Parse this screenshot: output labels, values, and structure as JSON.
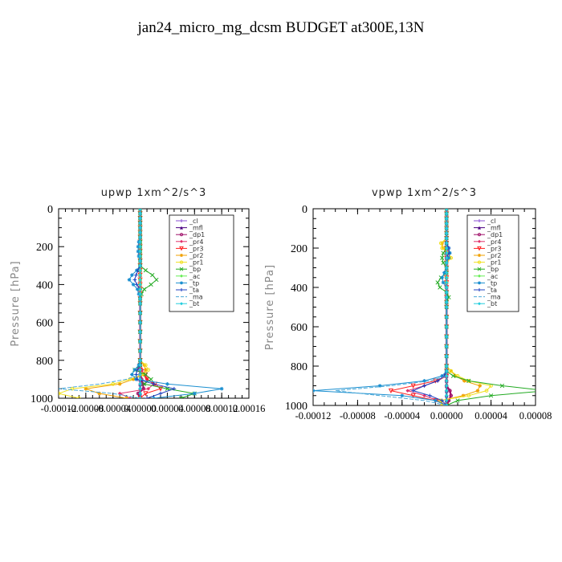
{
  "title": "jan24_micro_mg_dcsm  BUDGET at300E,13N",
  "colors": {
    "_cl": "#8a4fd6",
    "_mfl": "#4b0082",
    "_dp1": "#a0106a",
    "_pr4": "#e0306a",
    "_pr3": "#ff2020",
    "_pr2": "#f0a000",
    "_pr1": "#f0e020",
    "_bp": "#22aa22",
    "_ac": "#66ee55",
    "_tp": "#1a8fd0",
    "_ta": "#2040c0",
    "_ma": "#4aa8d8",
    "_bt": "#22ccdd"
  },
  "chart_data": [
    {
      "type": "line",
      "title": "upwp   1xm^2/s^3",
      "ylabel": "Pressure [hPa]",
      "xlabel": "",
      "xlim": [
        -0.00012,
        0.00016
      ],
      "ylim": [
        1000,
        0
      ],
      "y_ticks": [
        0,
        200,
        400,
        600,
        800,
        1000
      ],
      "y_tick_labels": [
        "0",
        "200",
        "400",
        "600",
        "800",
        "1000"
      ],
      "x_ticks": [
        -0.00012,
        -8e-05,
        -4e-05,
        0,
        4e-05,
        8e-05,
        0.00012,
        0.00016
      ],
      "x_tick_labels": [
        "-0.00012",
        "-0.00008",
        "-0.00004",
        "0.00000",
        "0.00004",
        "0.00008",
        "0.00012",
        "0.00016"
      ],
      "levels": [
        0,
        25,
        50,
        75,
        100,
        125,
        150,
        175,
        200,
        225,
        250,
        275,
        300,
        325,
        350,
        375,
        400,
        425,
        450,
        475,
        500,
        550,
        600,
        650,
        700,
        750,
        800,
        825,
        850,
        875,
        900,
        925,
        950,
        975,
        1000
      ],
      "legend_position": "top-right",
      "series": [
        {
          "name": "_cl",
          "values": [
            0,
            0,
            0,
            0,
            0,
            0,
            0,
            0,
            0,
            0,
            0,
            0,
            0,
            0,
            0,
            0,
            0,
            0,
            0,
            0,
            0,
            0,
            0,
            0,
            0,
            0,
            0,
            0,
            0,
            0,
            0,
            0,
            0,
            0,
            0
          ]
        },
        {
          "name": "_mfl",
          "values": [
            0,
            0,
            0,
            0,
            0,
            0,
            0,
            0,
            0,
            0,
            0,
            0,
            0,
            0,
            0,
            0,
            0,
            0,
            0,
            0,
            0,
            0,
            0,
            0,
            0,
            0,
            0,
            0,
            0,
            0,
            0,
            0,
            0,
            0,
            0
          ]
        },
        {
          "name": "_dp1",
          "values": [
            0,
            0,
            0,
            0,
            0,
            0,
            0,
            0,
            0,
            0,
            0,
            0,
            0,
            0,
            0,
            0,
            0,
            0,
            0,
            0,
            0,
            0,
            0,
            0,
            0,
            0,
            0,
            0,
            0,
            0,
            2e-06,
            4e-06,
            5e-06,
            -3e-06,
            0
          ]
        },
        {
          "name": "_pr4",
          "values": [
            0,
            0,
            0,
            0,
            0,
            0,
            0,
            0,
            0,
            0,
            0,
            0,
            0,
            0,
            0,
            0,
            0,
            0,
            0,
            0,
            0,
            0,
            0,
            0,
            0,
            0,
            0,
            0,
            3e-06,
            5e-06,
            1e-05,
            2e-05,
            1.2e-05,
            -3e-05,
            -1.5e-05
          ]
        },
        {
          "name": "_pr3",
          "values": [
            0,
            0,
            0,
            0,
            0,
            0,
            0,
            0,
            0,
            0,
            0,
            0,
            0,
            0,
            0,
            0,
            0,
            0,
            0,
            0,
            0,
            0,
            0,
            0,
            0,
            0,
            0,
            0,
            0,
            8e-06,
            1e-05,
            2.2e-05,
            3e-05,
            8e-06,
            0
          ]
        },
        {
          "name": "_pr2",
          "values": [
            0,
            0,
            0,
            0,
            0,
            0,
            0,
            0,
            0,
            0,
            0,
            0,
            0,
            0,
            0,
            0,
            0,
            0,
            0,
            0,
            0,
            0,
            0,
            0,
            0,
            0,
            0,
            6e-06,
            8e-06,
            4e-06,
            -1e-05,
            -3e-05,
            -8e-05,
            -6e-05,
            -2e-05
          ]
        },
        {
          "name": "_pr1",
          "values": [
            0,
            0,
            0,
            0,
            0,
            0,
            0,
            0,
            0,
            0,
            0,
            0,
            0,
            0,
            0,
            0,
            0,
            0,
            0,
            0,
            0,
            0,
            0,
            0,
            0,
            0,
            0,
            8e-06,
            1.2e-05,
            5e-06,
            -1.5e-05,
            -4e-05,
            -0.0001,
            -0.00012,
            -9e-05
          ]
        },
        {
          "name": "_bp",
          "values": [
            0,
            0,
            0,
            0,
            0,
            0,
            0,
            0,
            0,
            0,
            0,
            0,
            0,
            8e-06,
            1.8e-05,
            2.4e-05,
            1.6e-05,
            6e-06,
            2e-06,
            0,
            0,
            0,
            0,
            0,
            0,
            0,
            0,
            0,
            -8e-06,
            8e-06,
            1.6e-05,
            6e-06,
            4e-05,
            8e-05,
            6e-05
          ]
        },
        {
          "name": "_ac",
          "values": [
            0,
            0,
            0,
            0,
            0,
            0,
            0,
            0,
            0,
            0,
            0,
            0,
            0,
            0,
            0,
            0,
            0,
            0,
            0,
            0,
            0,
            0,
            0,
            0,
            0,
            0,
            0,
            0,
            0,
            0,
            0,
            0,
            0,
            0,
            0
          ]
        },
        {
          "name": "_tp",
          "values": [
            0,
            0,
            0,
            0,
            0,
            0,
            0,
            -2e-06,
            -3e-06,
            -3e-06,
            -2e-06,
            0,
            0,
            -5e-06,
            -1.2e-05,
            -1.6e-05,
            -1e-05,
            -4e-06,
            -2e-06,
            0,
            0,
            0,
            0,
            0,
            0,
            0,
            0,
            -2e-06,
            -8e-06,
            -1.2e-05,
            -6e-06,
            4e-05,
            0.00012,
            8e-05,
            2e-05
          ]
        },
        {
          "name": "_ta",
          "values": [
            0,
            0,
            0,
            0,
            0,
            0,
            0,
            0,
            0,
            0,
            0,
            0,
            0,
            -3e-06,
            -6e-06,
            -8e-06,
            -5e-06,
            0,
            0,
            0,
            0,
            0,
            0,
            0,
            0,
            0,
            0,
            0,
            -4e-06,
            -6e-06,
            -4e-06,
            2e-05,
            5e-05,
            3e-05,
            1e-05
          ]
        },
        {
          "name": "_ma",
          "values": [
            0,
            0,
            0,
            0,
            0,
            0,
            0,
            0,
            0,
            0,
            0,
            0,
            0,
            0,
            0,
            0,
            0,
            0,
            0,
            0,
            0,
            0,
            0,
            0,
            0,
            0,
            0,
            0,
            0,
            0,
            -2e-05,
            -6e-05,
            -0.00012,
            -4e-05,
            0
          ]
        },
        {
          "name": "_bt",
          "values": [
            0,
            0,
            0,
            0,
            0,
            0,
            0,
            0,
            0,
            0,
            0,
            0,
            0,
            0,
            0,
            0,
            0,
            0,
            0,
            0,
            0,
            0,
            0,
            0,
            0,
            0,
            0,
            0,
            0,
            0,
            0,
            0,
            0,
            0,
            0
          ]
        }
      ]
    },
    {
      "type": "line",
      "title": "vpwp   1xm^2/s^3",
      "ylabel": "Pressure [hPa]",
      "xlabel": "",
      "xlim": [
        -0.00012,
        8e-05
      ],
      "ylim": [
        1000,
        0
      ],
      "y_ticks": [
        0,
        200,
        400,
        600,
        800,
        1000
      ],
      "y_tick_labels": [
        "0",
        "200",
        "400",
        "600",
        "800",
        "1000"
      ],
      "x_ticks": [
        -0.00012,
        -8e-05,
        -4e-05,
        0,
        4e-05,
        8e-05
      ],
      "x_tick_labels": [
        "-0.00012",
        "-0.00008",
        "-0.00004",
        "0.00000",
        "0.00004",
        "0.00008"
      ],
      "levels": [
        0,
        25,
        50,
        75,
        100,
        125,
        150,
        175,
        200,
        225,
        250,
        275,
        300,
        325,
        350,
        375,
        400,
        425,
        450,
        475,
        500,
        550,
        600,
        650,
        700,
        750,
        800,
        825,
        850,
        875,
        900,
        925,
        950,
        975,
        1000
      ],
      "legend_position": "top-right",
      "series": [
        {
          "name": "_cl",
          "values": [
            0,
            0,
            0,
            0,
            0,
            0,
            0,
            0,
            0,
            0,
            0,
            0,
            0,
            0,
            0,
            0,
            0,
            0,
            0,
            0,
            0,
            0,
            0,
            0,
            0,
            0,
            0,
            0,
            0,
            0,
            0,
            0,
            0,
            0,
            0
          ]
        },
        {
          "name": "_mfl",
          "values": [
            0,
            0,
            0,
            0,
            0,
            0,
            0,
            0,
            0,
            0,
            0,
            0,
            0,
            0,
            0,
            0,
            0,
            0,
            0,
            0,
            0,
            0,
            0,
            0,
            0,
            0,
            0,
            0,
            0,
            0,
            0,
            0,
            0,
            0,
            0
          ]
        },
        {
          "name": "_dp1",
          "values": [
            0,
            0,
            0,
            0,
            0,
            0,
            0,
            0,
            0,
            0,
            0,
            0,
            0,
            0,
            0,
            0,
            0,
            0,
            0,
            0,
            0,
            0,
            0,
            0,
            0,
            0,
            0,
            0,
            0,
            0,
            0,
            3e-06,
            4e-06,
            2e-06,
            0
          ]
        },
        {
          "name": "_pr4",
          "values": [
            0,
            0,
            0,
            0,
            0,
            0,
            0,
            0,
            0,
            0,
            0,
            0,
            0,
            0,
            0,
            0,
            0,
            0,
            0,
            0,
            0,
            0,
            0,
            0,
            0,
            0,
            0,
            0,
            0,
            -8e-06,
            -2e-05,
            -3.5e-05,
            -2e-05,
            -8e-06,
            0
          ]
        },
        {
          "name": "_pr3",
          "values": [
            0,
            0,
            0,
            0,
            0,
            0,
            0,
            0,
            0,
            0,
            0,
            0,
            0,
            0,
            0,
            0,
            0,
            0,
            0,
            0,
            0,
            0,
            0,
            0,
            0,
            0,
            0,
            0,
            0,
            -1e-05,
            -3e-05,
            -5e-05,
            -3e-05,
            -1e-05,
            0
          ]
        },
        {
          "name": "_pr2",
          "values": [
            0,
            0,
            0,
            0,
            0,
            0,
            0,
            -4e-06,
            -3e-06,
            2e-06,
            3e-06,
            0,
            0,
            0,
            0,
            0,
            0,
            0,
            0,
            0,
            0,
            0,
            0,
            0,
            0,
            0,
            0,
            4e-06,
            8e-06,
            1.6e-05,
            3e-05,
            2.8e-05,
            1.5e-05,
            -5e-06,
            -3e-06
          ]
        },
        {
          "name": "_pr1",
          "values": [
            0,
            0,
            0,
            0,
            0,
            0,
            0,
            -5e-06,
            -4e-06,
            2e-06,
            4e-06,
            0,
            0,
            0,
            0,
            0,
            0,
            0,
            0,
            0,
            0,
            0,
            0,
            0,
            0,
            0,
            0,
            4e-06,
            1e-05,
            2e-05,
            4e-05,
            3.6e-05,
            2e-05,
            -6e-06,
            -4e-06
          ]
        },
        {
          "name": "_bp",
          "values": [
            0,
            0,
            0,
            0,
            0,
            0,
            0,
            0,
            0,
            -3e-06,
            -4e-06,
            -3e-06,
            0,
            0,
            -5e-06,
            -8e-06,
            -6e-06,
            0,
            2e-06,
            0,
            0,
            0,
            0,
            0,
            0,
            0,
            0,
            0,
            6e-06,
            2e-05,
            5e-05,
            9e-05,
            4e-05,
            1e-05,
            0
          ]
        },
        {
          "name": "_ac",
          "values": [
            0,
            0,
            0,
            0,
            0,
            0,
            0,
            0,
            0,
            0,
            0,
            0,
            0,
            0,
            0,
            0,
            0,
            0,
            0,
            0,
            0,
            0,
            0,
            0,
            0,
            0,
            0,
            0,
            0,
            0,
            0,
            0,
            0,
            0,
            0
          ]
        },
        {
          "name": "_tp",
          "values": [
            0,
            0,
            0,
            0,
            0,
            0,
            0,
            0,
            2e-06,
            3e-06,
            2e-06,
            0,
            0,
            -2e-06,
            -4e-06,
            -3e-06,
            0,
            0,
            0,
            0,
            0,
            0,
            0,
            0,
            0,
            0,
            0,
            0,
            -4e-06,
            -2e-05,
            -6e-05,
            -0.00012,
            -4e-05,
            -1e-05,
            0
          ]
        },
        {
          "name": "_ta",
          "values": [
            0,
            0,
            0,
            0,
            0,
            0,
            0,
            0,
            2e-06,
            2e-06,
            0,
            0,
            0,
            0,
            0,
            0,
            0,
            0,
            0,
            0,
            0,
            0,
            0,
            0,
            0,
            0,
            0,
            0,
            -2e-06,
            -8e-06,
            -2e-05,
            -3e-05,
            -1.5e-05,
            -4e-06,
            0
          ]
        },
        {
          "name": "_ma",
          "values": [
            0,
            0,
            0,
            0,
            0,
            0,
            0,
            0,
            0,
            0,
            0,
            0,
            0,
            0,
            0,
            0,
            0,
            0,
            0,
            0,
            0,
            0,
            0,
            0,
            0,
            0,
            0,
            0,
            0,
            -1.5e-05,
            -5e-05,
            -0.0001,
            -6e-05,
            -2e-05,
            0
          ]
        },
        {
          "name": "_bt",
          "values": [
            0,
            0,
            0,
            0,
            0,
            0,
            0,
            0,
            0,
            0,
            0,
            0,
            0,
            0,
            0,
            0,
            0,
            0,
            0,
            0,
            0,
            0,
            0,
            0,
            0,
            0,
            0,
            0,
            0,
            0,
            0,
            0,
            0,
            0,
            0
          ]
        }
      ]
    }
  ]
}
